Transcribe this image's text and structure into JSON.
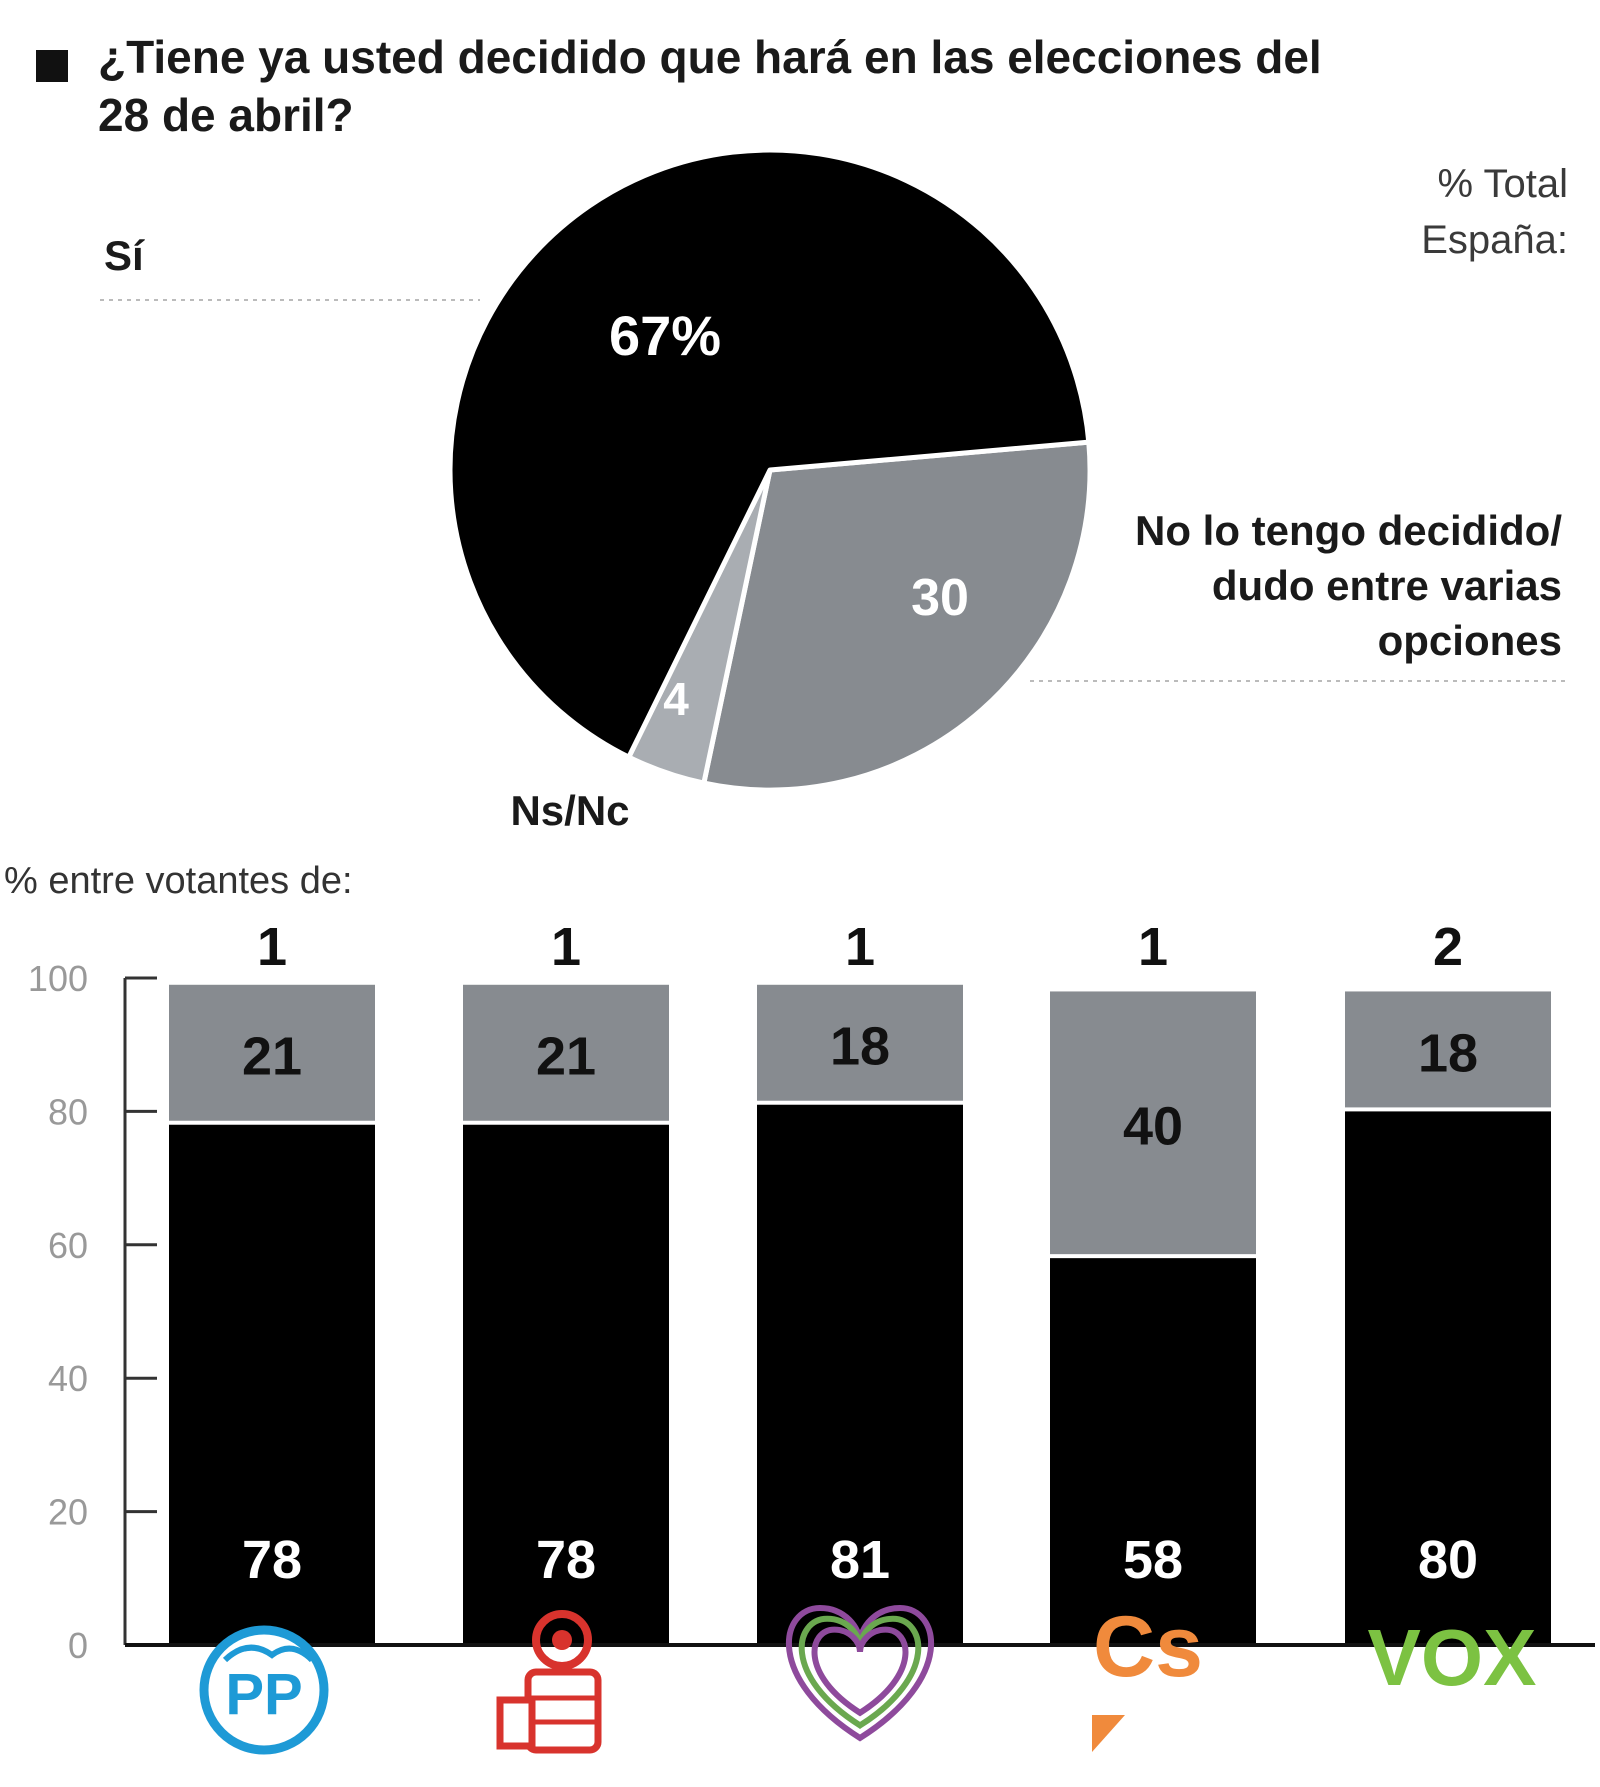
{
  "header": {
    "title_line1": "¿Tiene ya usted decidido que hará en las elecciones del",
    "title_line2": "28 de abril?",
    "subtitle_line1": "% Total",
    "subtitle_line2": "España:"
  },
  "colors": {
    "decided": "#000000",
    "undecided": "#878b90",
    "nsnc": "#a9adb2",
    "axis_text": "#999999",
    "leader": "#bbbbbb"
  },
  "chart_data": [
    {
      "type": "pie",
      "slices": [
        {
          "label": "Sí",
          "value": 67,
          "value_label": "67%",
          "color": "#000000"
        },
        {
          "label": "No lo tengo decidido/ dudo entre varias opciones",
          "label_lines": [
            "No lo tengo decidido/",
            "dudo entre varias",
            "opciones"
          ],
          "value": 30,
          "value_label": "30",
          "color": "#878b90"
        },
        {
          "label": "Ns/Nc",
          "value": 4,
          "value_label": "4",
          "color": "#a9adb2"
        }
      ]
    },
    {
      "type": "bar",
      "stacked": true,
      "caption": "% entre votantes de:",
      "categories": [
        "PP",
        "PSOE",
        "Unidas Podemos",
        "Cs",
        "VOX"
      ],
      "logo_text": [
        "PP",
        "",
        "",
        "Cs",
        "VOX"
      ],
      "series": [
        {
          "values": [
            78,
            78,
            81,
            58,
            80
          ],
          "color": "#000000"
        },
        {
          "values": [
            21,
            21,
            18,
            40,
            18
          ],
          "color": "#878b90"
        },
        {
          "values": [
            1,
            1,
            1,
            1,
            2
          ],
          "color": "#ffffff"
        }
      ],
      "ylim": [
        0,
        100
      ],
      "yticks": [
        0,
        20,
        40,
        60,
        80,
        100
      ],
      "grid": false,
      "legend": "none"
    }
  ]
}
